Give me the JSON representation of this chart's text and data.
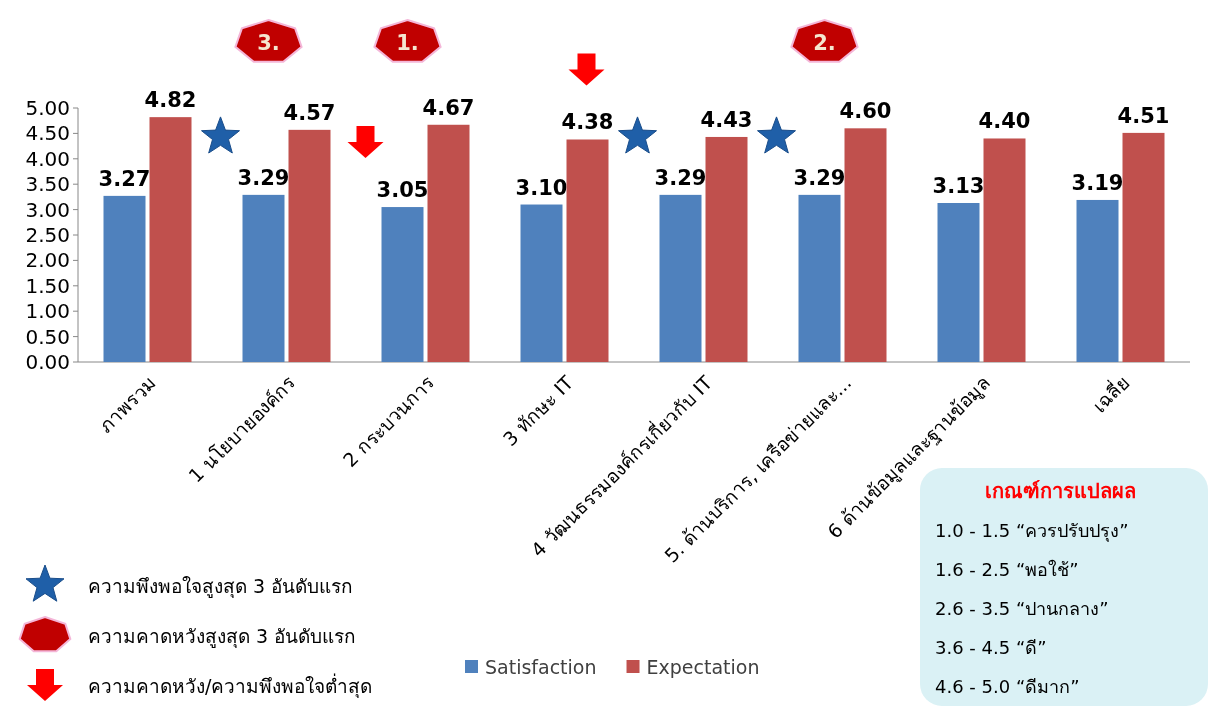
{
  "chart_data": {
    "type": "bar",
    "categories": [
      "ภาพรวม",
      "1 นโยบายองค์กร",
      "2 กระบวนการ",
      "3 ทักษะ IT",
      "4 วัฒนธรรมองค์กรเกี่ยวกับ IT",
      "5. ด้านบริการ, เครือข่ายและ...",
      "6 ด้านข้อมูลและฐานข้อมูล",
      "เฉลี่ย"
    ],
    "series": [
      {
        "name": "Satisfaction",
        "color": "#4f81bd",
        "values": [
          3.27,
          3.29,
          3.05,
          3.1,
          3.29,
          3.29,
          3.13,
          3.19
        ],
        "value_labels": [
          "3.27",
          "3.29",
          "3.05",
          "3.10",
          "3.29",
          "3.29",
          "3.13",
          "3.19"
        ]
      },
      {
        "name": "Expectation",
        "color": "#c0504d",
        "values": [
          4.82,
          4.57,
          4.67,
          4.38,
          4.43,
          4.6,
          4.4,
          4.51
        ],
        "value_labels": [
          "4.82",
          "4.57",
          "4.67",
          "4.38",
          "4.43",
          "4.60",
          "4.40",
          "4.51"
        ]
      }
    ],
    "ylim": [
      0,
      5
    ],
    "yticks": [
      {
        "value": 0,
        "label": "0.00"
      },
      {
        "value": 0.5,
        "label": "0.50"
      },
      {
        "value": 1,
        "label": "1.00"
      },
      {
        "value": 1.5,
        "label": "1.50"
      },
      {
        "value": 2,
        "label": "2.00"
      },
      {
        "value": 2.5,
        "label": "2.50"
      },
      {
        "value": 3,
        "label": "3.00"
      },
      {
        "value": 3.5,
        "label": "3.50"
      },
      {
        "value": 4,
        "label": "4.00"
      },
      {
        "value": 4.5,
        "label": "4.50"
      },
      {
        "value": 5,
        "label": "5.00"
      }
    ],
    "grid": false,
    "legend": "bottom",
    "annotations": [
      "3.",
      "1.",
      "2.",
      "ความพึงพอใจสูงสุด 3 อันดับแรก",
      "ความคาดหวังสูงสุด 3 อันดับแรก",
      "ความคาดหวัง/ความพึงพอใจต่ำสุด",
      "เกณฑ์การแปลผล",
      "1.0 - 1.5 “ควรปรับปรุง”",
      "1.6 - 2.5 “พอใช้”",
      "2.6 - 3.5 “ปานกลาง”",
      "3.6 - 4.5 “ดี”",
      "4.6 - 5.0 “ดีมาก”"
    ]
  }
}
